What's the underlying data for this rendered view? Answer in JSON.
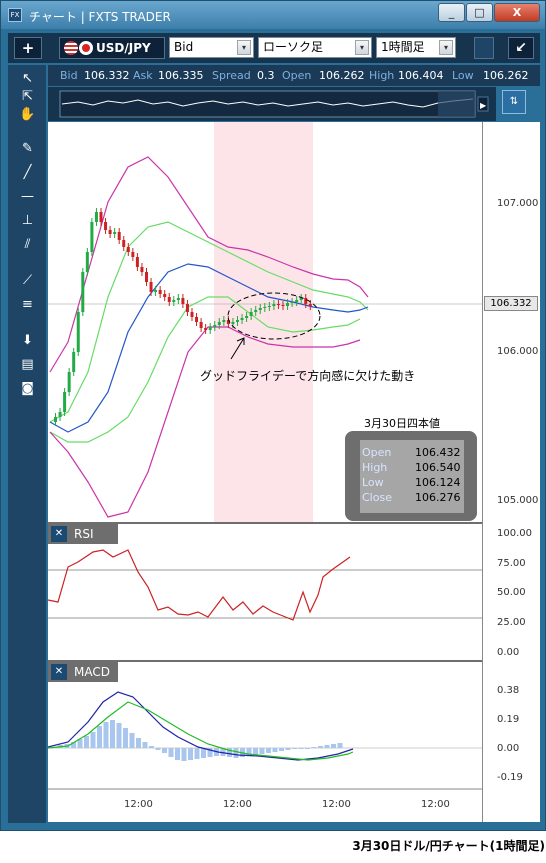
{
  "window": {
    "title": "チャート | FXTS TRADER",
    "minimize": "_",
    "maximize": "□",
    "close": "X",
    "icon": "FX"
  },
  "toolbar": {
    "add": "+",
    "symbol": "USD/JPY",
    "price_type": "Bid",
    "chart_type": "ローソク足",
    "timeframe": "1時間足",
    "dd_arrow": "▾",
    "collapse": "↙"
  },
  "quote": {
    "bid_label": "Bid",
    "bid": "106.332",
    "ask_label": "Ask",
    "ask": "106.335",
    "spread_label": "Spread",
    "spread": "0.3",
    "open_label": "Open",
    "open": "106.262",
    "high_label": "High",
    "high": "106.404",
    "low_label": "Low",
    "low": "106.262"
  },
  "price_axis": {
    "labels": [
      "107.000",
      "106.000",
      "105.000"
    ],
    "current": "106.332"
  },
  "rsi": {
    "title": "RSI",
    "close": "✕",
    "labels": [
      "100.00",
      "75.00",
      "50.00",
      "25.00",
      "0.00"
    ]
  },
  "macd": {
    "title": "MACD",
    "close": "✕",
    "labels": [
      "0.38",
      "0.19",
      "0.00",
      "-0.19"
    ]
  },
  "time_labels": [
    "12:00",
    "12:00",
    "12:00",
    "12:00"
  ],
  "annotation": "グッドフライデーで方向感に欠けた動き",
  "ohlc_box": {
    "heading": "3月30日四本値",
    "open_label": "Open",
    "open": "106.432",
    "high_label": "High",
    "high": "106.540",
    "low_label": "Low",
    "low": "106.124",
    "close_label": "Close",
    "close": "106.276"
  },
  "caption": "3月30日ドル/円チャート(1時間足)",
  "colors": {
    "window_bg": "#2a6f98",
    "panel": "#17344f",
    "bollinger_outer": "#cc33aa",
    "bollinger_inner": "#66dd66",
    "ma": "#2255cc",
    "candle_up": "#22aa44",
    "candle_down": "#cc2222",
    "rsi": "#cc2222",
    "macd_line": "#2222aa",
    "signal_line": "#22bb22",
    "histogram": "#a9c6ee",
    "highlight": "#fde4e8"
  }
}
